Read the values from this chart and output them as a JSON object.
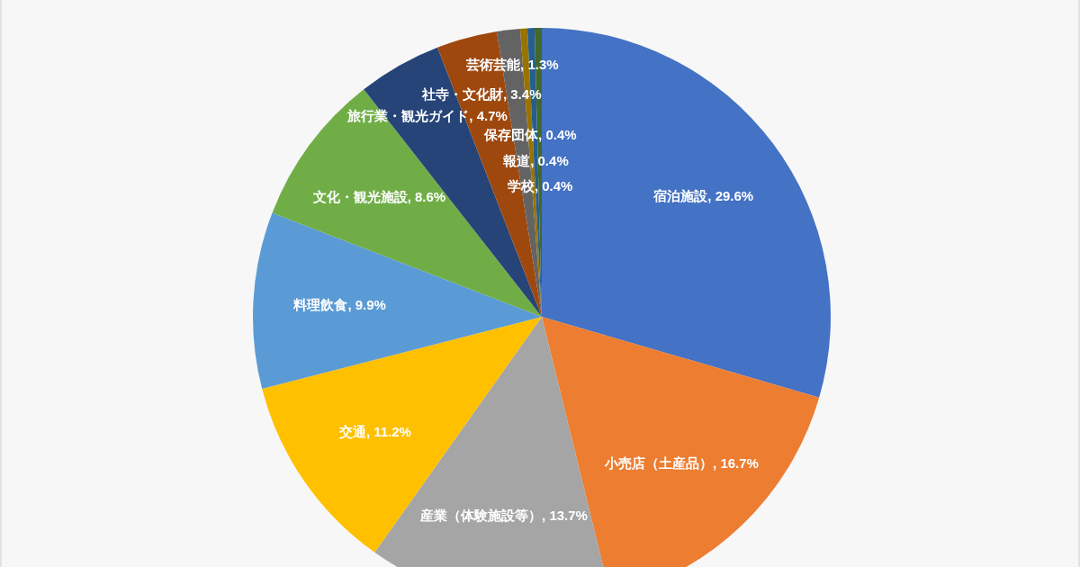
{
  "chart_data": {
    "type": "pie",
    "categories": [
      "宿泊施設",
      "小売店（土産品）",
      "産業（体験施設等）",
      "交通",
      "料理飲食",
      "文化・観光施設",
      "旅行業・観光ガイド",
      "社寺・文化財",
      "芸術芸能",
      "保存団体",
      "報道",
      "学校"
    ],
    "values": [
      29.6,
      16.7,
      13.7,
      11.2,
      9.9,
      8.6,
      4.7,
      3.4,
      1.3,
      0.4,
      0.4,
      0.4
    ],
    "colors": [
      "#4472c4",
      "#ed7d31",
      "#a5a5a5",
      "#ffc000",
      "#5b9bd5",
      "#70ad47",
      "#264478",
      "#9e480e",
      "#636363",
      "#997300",
      "#255e91",
      "#43682b"
    ],
    "value_labels": [
      "29.6%",
      "16.7%",
      "13.7%",
      "11.2%",
      "9.9%",
      "8.6%",
      "4.7%",
      "3.4%",
      "1.3%",
      "0.4%",
      "0.4%",
      "0.4%"
    ]
  }
}
